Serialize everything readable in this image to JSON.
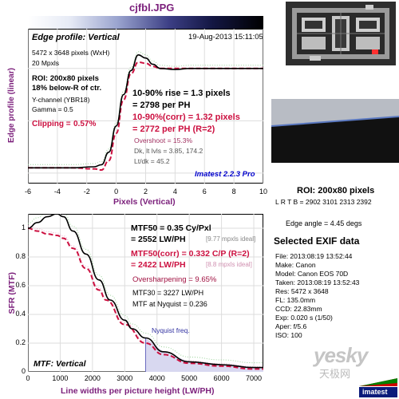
{
  "window": {
    "filename": "cjfbl.JPG"
  },
  "colors": {
    "black_curve": "#000000",
    "corrected_curve": "#cc1040",
    "pink_dotted": "#e8a8c8",
    "green_dotted": "#9bd39b",
    "nyquist_fill": "#d8d8f0",
    "accent_purple": "#7b1f7b",
    "imatest_blue": "#0000cc"
  },
  "edge_panel": {
    "title": "Edge profile: Vertical",
    "date": "19-Aug-2013 15:11:05",
    "image_size": "5472 x 3648 pixels (WxH)",
    "mpxls": "20 Mpxls",
    "roi_line1": "ROI: 200x80 pixels",
    "roi_line2": "18% below-R of ctr.",
    "channel": "Y-channel   (YBR18)",
    "gamma": "Gamma = 0.5",
    "clipping_label": "Clipping =",
    "clipping_value": "0.57%",
    "rise_line1": "10-90% rise = 1.3 pixels",
    "rise_line2": "= 2798 per PH",
    "corr_line1": "10-90%(corr) = 1.32 pixels",
    "corr_line2": "= 2772 per PH   (R=2)",
    "overshoot": "Overshoot = 15.3%",
    "dk": "Dk, lt lvls = 3.85, 174.2",
    "ltdk": "Lt/dk = 45.2",
    "version": "Imatest 2.2.3 Pro",
    "ylabel": "Edge profile (linear)",
    "xlabel": "Pixels (Vertical)"
  },
  "mtf_panel": {
    "mtf50": "MTF50 = 0.35 Cy/Pxl",
    "mtf50_lw": "= 2552 LW/PH",
    "mtf50_ideal": "[9.77 mpxls ideal]",
    "mtf50corr": "MTF50(corr) = 0.332 C/P  (R=2)",
    "mtf50corr_lw": "= 2422 LW/PH",
    "mtf50corr_ideal": "[8.8 mpxls ideal]",
    "oversharpening": "Oversharpening = 9.65%",
    "mtf30": "MTF30 = 3227 LW/PH",
    "mtf_nyquist": "MTF at Nyquist = 0.236",
    "nyquist_label": "Nyquist freq.",
    "title": "MTF: Vertical",
    "ylabel": "SFR (MTF)",
    "xlabel": "Line widths per picture height (LW/PH)"
  },
  "right_panel": {
    "roi_title": "ROI: 200x80 pixels",
    "roi_coords": "L R T B = 2902 3101  2313 2392",
    "edge_angle": "Edge angle = 4.45 degs",
    "exif_title": "Selected EXIF data",
    "exif": [
      "File:  2013:08:19 13:52:44",
      "Make:  Canon",
      "Model:  Canon EOS 70D",
      "Taken:  2013:08:19 13:52:43",
      "Res:    5472 x 3648",
      "FL:    135.0mm",
      "CCD:    22.83mm",
      "Exp:    0.020 s  (1/50)",
      "Aper:    f/5.6",
      "ISO:    100"
    ]
  },
  "watermark": {
    "brand": "yesky",
    "cn": "天极网",
    "logo": "imatest"
  },
  "chart_data": [
    {
      "type": "line",
      "title": "Edge profile: Vertical",
      "xlabel": "Pixels (Vertical)",
      "ylabel": "Edge profile (linear)",
      "xlim": [
        -6,
        10
      ],
      "x_ticks": [
        -6,
        -4,
        -2,
        0,
        2,
        4,
        6,
        8,
        10
      ],
      "grid": true,
      "series": [
        {
          "x": [
            -6,
            -3,
            -1.5,
            -1,
            -0.5,
            0,
            0.5,
            1,
            1.5,
            2,
            2.5,
            3,
            4,
            5,
            6,
            8,
            10
          ],
          "y": [
            0.05,
            0.05,
            0.06,
            0.08,
            0.2,
            0.45,
            0.75,
            0.98,
            1.13,
            1.1,
            1.04,
            1.0,
            0.99,
            1.0,
            1.0,
            1.0,
            1.0
          ]
        },
        {
          "x": [
            -6,
            -3,
            -1.5,
            -1,
            -0.5,
            0,
            0.5,
            1,
            1.5,
            2,
            2.5,
            3,
            4,
            5,
            6,
            8,
            10
          ],
          "y": [
            0.05,
            0.05,
            0.04,
            0.03,
            0.12,
            0.38,
            0.7,
            0.95,
            1.06,
            1.05,
            1.02,
            1.0,
            1.0,
            1.0,
            1.0,
            1.0,
            1.0
          ]
        }
      ]
    },
    {
      "type": "line",
      "title": "MTF: Vertical",
      "xlabel": "Line widths per picture height (LW/PH)",
      "ylabel": "SFR (MTF)",
      "xlim": [
        0,
        7296
      ],
      "ylim": [
        0,
        1.1
      ],
      "x_ticks": [
        0,
        1000,
        2000,
        3000,
        4000,
        5000,
        6000,
        7000
      ],
      "y_ticks": [
        0,
        0.2,
        0.4,
        0.6,
        0.8,
        1
      ],
      "nyquist": 3648,
      "grid": true,
      "series": [
        {
          "x": [
            0,
            300,
            600,
            900,
            1100,
            1400,
            1800,
            2200,
            2552,
            3000,
            3227,
            3648,
            4200,
            5000,
            6000,
            7000,
            7296
          ],
          "y": [
            1.0,
            1.04,
            1.08,
            1.1,
            1.08,
            0.98,
            0.82,
            0.64,
            0.5,
            0.36,
            0.3,
            0.236,
            0.14,
            0.07,
            0.05,
            0.03,
            0.03
          ]
        },
        {
          "x": [
            0,
            300,
            600,
            900,
            1100,
            1400,
            1800,
            2200,
            2422,
            3000,
            3648,
            4200,
            5000,
            6000,
            7000,
            7296
          ],
          "y": [
            1.0,
            0.98,
            0.96,
            0.95,
            0.93,
            0.86,
            0.72,
            0.57,
            0.5,
            0.33,
            0.2,
            0.12,
            0.06,
            0.04,
            0.02,
            0.02
          ]
        }
      ]
    }
  ]
}
